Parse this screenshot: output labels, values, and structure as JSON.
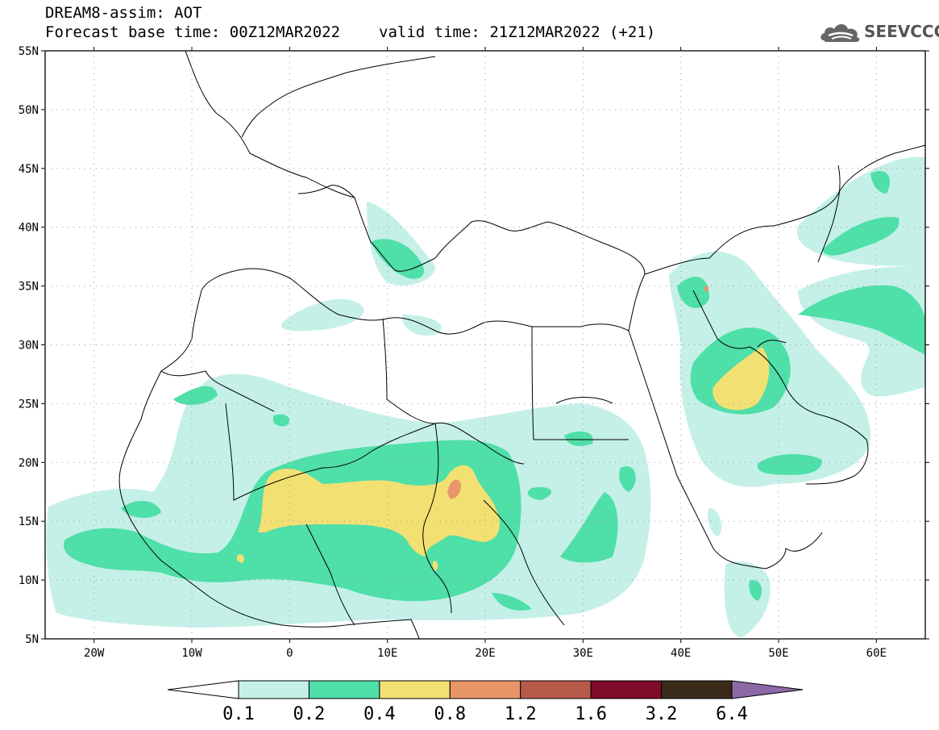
{
  "header": {
    "line1": "DREAM8-assim: AOT",
    "base_time": "Forecast base time: 00Z12MAR2022",
    "valid_time": "valid time: 21Z12MAR2022 (+21)"
  },
  "logo": {
    "text": "SEEVCCC",
    "icon": "cloud-icon"
  },
  "map": {
    "lon_range": [
      -25,
      65
    ],
    "lat_range": [
      5,
      55
    ],
    "lat_ticks": [
      "55N",
      "50N",
      "45N",
      "40N",
      "35N",
      "30N",
      "25N",
      "20N",
      "15N",
      "10N",
      "5N"
    ],
    "lon_ticks": [
      "20W",
      "10W",
      "0",
      "10E",
      "20E",
      "30E",
      "40E",
      "50E",
      "60E"
    ]
  },
  "legend": {
    "breaks": [
      "0.1",
      "0.2",
      "0.4",
      "0.8",
      "1.2",
      "1.6",
      "3.2",
      "6.4"
    ],
    "colors": [
      "#c4f0e8",
      "#4fdfa8",
      "#f3e073",
      "#e8956a",
      "#b85a4a",
      "#7e0b2a",
      "#3a2a1a",
      "#8d69a8"
    ]
  }
}
